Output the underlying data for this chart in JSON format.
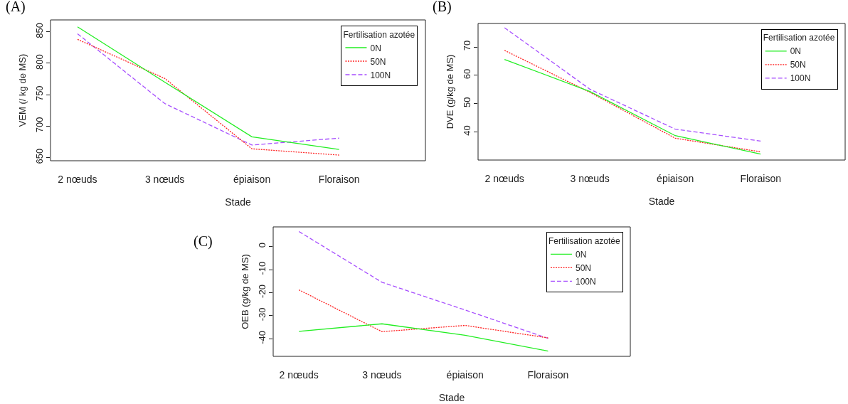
{
  "chart_data": [
    {
      "type": "line",
      "title": "(A)",
      "xlabel": "Stade",
      "ylabel": "VEM (/ kg de MS)",
      "legend_title": "Fertilisation azotée",
      "categories": [
        "2 nœuds",
        "3 nœuds",
        "épiaison",
        "Floraison"
      ],
      "series": [
        {
          "name": "0N",
          "color": "#22ee22",
          "line_style": "solid",
          "values": [
            858,
            770,
            683,
            663
          ]
        },
        {
          "name": "50N",
          "color": "#ff2020",
          "line_style": "dotted",
          "values": [
            838,
            776,
            664,
            654
          ]
        },
        {
          "name": "100N",
          "color": "#a64dff",
          "line_style": "dashed",
          "values": [
            847,
            736,
            670,
            681
          ]
        }
      ],
      "ylim": [
        645,
        869
      ],
      "yticks": [
        650,
        700,
        750,
        800,
        850
      ],
      "grid": false,
      "legend": "top right"
    },
    {
      "type": "line",
      "title": "(B)",
      "xlabel": "Stade",
      "ylabel": "DVE (g/kg de MS)",
      "legend_title": "Fertilisation azotée",
      "categories": [
        "2 nœuds",
        "3 nœuds",
        "épiaison",
        "Floraison"
      ],
      "series": [
        {
          "name": "0N",
          "color": "#22ee22",
          "line_style": "solid",
          "values": [
            65.6,
            54.3,
            38.7,
            32.2
          ]
        },
        {
          "name": "50N",
          "color": "#ff2020",
          "line_style": "dotted",
          "values": [
            68.8,
            54,
            37.8,
            33
          ]
        },
        {
          "name": "100N",
          "color": "#a64dff",
          "line_style": "dashed",
          "values": [
            76.8,
            55.1,
            41,
            36.8
          ]
        }
      ],
      "ylim": [
        30.1,
        78.3
      ],
      "yticks": [
        40,
        50,
        60,
        70
      ],
      "grid": false,
      "legend": "top right"
    },
    {
      "type": "line",
      "title": "(C)",
      "xlabel": "Stade",
      "ylabel": "OEB (g/kg de MS)",
      "legend_title": "Fertilisation azotée",
      "categories": [
        "2 nœuds",
        "3 nœuds",
        "épiaison",
        "Floraison"
      ],
      "series": [
        {
          "name": "0N",
          "color": "#22ee22",
          "line_style": "solid",
          "values": [
            -36.8,
            -33.5,
            -38.5,
            -45.3
          ]
        },
        {
          "name": "50N",
          "color": "#ff2020",
          "line_style": "dotted",
          "values": [
            -18.8,
            -36.9,
            -34.2,
            -39.6
          ]
        },
        {
          "name": "100N",
          "color": "#a64dff",
          "line_style": "dashed",
          "values": [
            6.5,
            -15.5,
            -27.5,
            -39.8
          ]
        }
      ],
      "ylim": [
        -47.6,
        8.5
      ],
      "yticks": [
        -40,
        -30,
        -20,
        -10,
        0
      ],
      "grid": false,
      "legend": "top right"
    }
  ]
}
